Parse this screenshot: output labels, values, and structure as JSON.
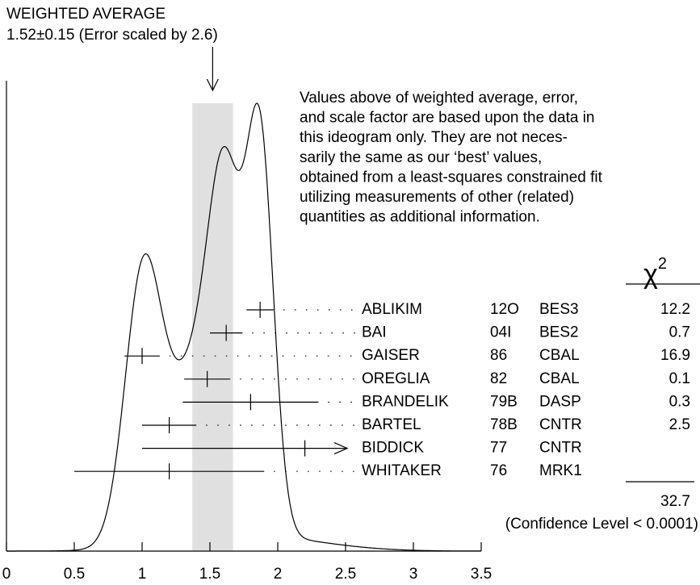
{
  "chart_data": {
    "type": "ideogram",
    "title": "WEIGHTED AVERAGE",
    "average": {
      "value": 1.52,
      "error": 0.15,
      "label": "1.52±0.15 (Error scaled by 2.6)"
    },
    "annotation": [
      "Values above of weighted average, error,",
      "and scale factor are based upon the data in",
      "this ideogram only.  They are not neces-",
      "sarily the same as our ‘best’ values,",
      "obtained from a least-squares constrained fit",
      "utilizing measurements of other (related)",
      "quantities as additional information."
    ],
    "chi2_symbol": "χ",
    "chi2_power": "2",
    "measurements": [
      {
        "name": "ABLIKIM",
        "code": "12O",
        "experiment": "BES3",
        "value": 1.87,
        "error": 0.1,
        "chi2": 12.2
      },
      {
        "name": "BAI",
        "code": "04I",
        "experiment": "BES2",
        "value": 1.62,
        "error": 0.12,
        "chi2": 0.7
      },
      {
        "name": "GAISER",
        "code": "86",
        "experiment": "CBAL",
        "value": 1.0,
        "error": 0.13,
        "chi2": 16.9
      },
      {
        "name": "OREGLIA",
        "code": "82",
        "experiment": "CBAL",
        "value": 1.48,
        "error": 0.17,
        "chi2": 0.1
      },
      {
        "name": "BRANDELIK",
        "code": "79B",
        "experiment": "DASP",
        "value": 1.8,
        "error": 0.5,
        "chi2": 0.3
      },
      {
        "name": "BARTEL",
        "code": "78B",
        "experiment": "CNTR",
        "value": 1.2,
        "error": 0.2,
        "chi2": 2.5
      },
      {
        "name": "BIDDICK",
        "code": "77",
        "experiment": "CNTR",
        "value": 2.2,
        "error": 1.2,
        "chi2": null,
        "arrow": true
      },
      {
        "name": "WHITAKER",
        "code": "76",
        "experiment": "MRK1",
        "value": 1.2,
        "error": 0.7,
        "chi2": null
      }
    ],
    "chi2_total": 32.7,
    "confidence": "(Confidence Level < 0.0001)",
    "xlim": [
      0,
      3.5
    ],
    "xticks": [
      0,
      0.5,
      1,
      1.5,
      2,
      2.5,
      3,
      3.5
    ],
    "band_color": "#e0e0e0",
    "color": "#000000"
  }
}
